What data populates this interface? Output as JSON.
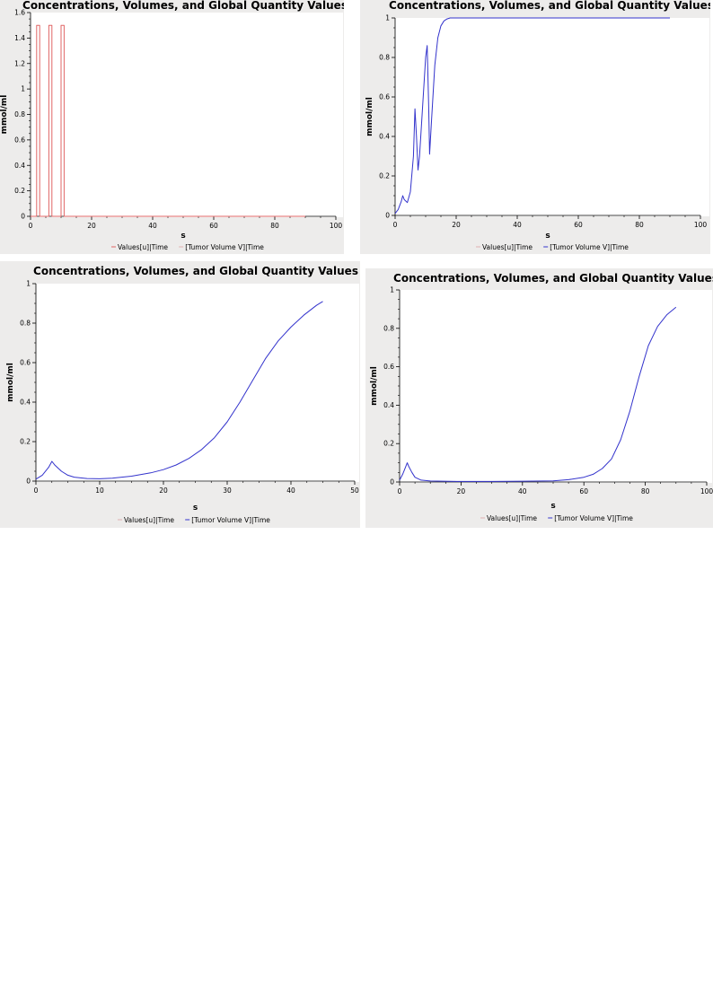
{
  "chart_data": [
    {
      "type": "line",
      "title": "Concentrations, Volumes, and Global Quantity Values",
      "xlabel": "s",
      "ylabel": "mmol/ml",
      "xlim": [
        0,
        100
      ],
      "ylim": [
        0,
        1.6
      ],
      "x_ticks": [
        "0",
        "20",
        "40",
        "60",
        "80",
        "100"
      ],
      "y_ticks": [
        "0",
        "0.2",
        "0.4",
        "0.6",
        "0.8",
        "1",
        "1.2",
        "1.4",
        "1.6"
      ],
      "legend": [
        "Values[u]|Time",
        "[Tumor Volume V]|Time"
      ],
      "series": [
        {
          "name": "Values[u]|Time",
          "color": "#e06666",
          "visible": true,
          "points": [
            [
              0,
              0
            ],
            [
              2,
              0
            ],
            [
              2,
              1.5
            ],
            [
              3,
              1.5
            ],
            [
              3,
              0
            ],
            [
              6,
              0
            ],
            [
              6,
              1.5
            ],
            [
              7,
              1.5
            ],
            [
              7,
              0
            ],
            [
              10,
              0
            ],
            [
              10,
              1.5
            ],
            [
              11,
              1.5
            ],
            [
              11,
              0
            ],
            [
              90,
              0
            ]
          ]
        },
        {
          "name": "[Tumor Volume V]|Time",
          "color": "#3333cc",
          "visible": false,
          "points": []
        }
      ]
    },
    {
      "type": "line",
      "title": "Concentrations, Volumes, and Global Quantity Values",
      "xlabel": "s",
      "ylabel": "mmol/ml",
      "xlim": [
        0,
        100
      ],
      "ylim": [
        0,
        1
      ],
      "x_ticks": [
        "0",
        "20",
        "40",
        "60",
        "80",
        "100"
      ],
      "y_ticks": [
        "0",
        "0.2",
        "0.4",
        "0.6",
        "0.8",
        "1"
      ],
      "legend": [
        "Values[u]|Time",
        "[Tumor Volume V]|Time"
      ],
      "series": [
        {
          "name": "Values[u]|Time",
          "color": "#e06666",
          "visible": false,
          "points": []
        },
        {
          "name": "[Tumor Volume V]|Time",
          "color": "#3333cc",
          "visible": true,
          "points": [
            [
              0,
              0.01
            ],
            [
              1,
              0.03
            ],
            [
              2,
              0.07
            ],
            [
              2.5,
              0.1
            ],
            [
              3,
              0.08
            ],
            [
              4,
              0.065
            ],
            [
              5,
              0.12
            ],
            [
              6,
              0.3
            ],
            [
              6.5,
              0.54
            ],
            [
              7,
              0.4
            ],
            [
              7.5,
              0.23
            ],
            [
              8,
              0.3
            ],
            [
              9,
              0.55
            ],
            [
              10,
              0.8
            ],
            [
              10.5,
              0.86
            ],
            [
              11,
              0.55
            ],
            [
              11.3,
              0.31
            ],
            [
              12,
              0.5
            ],
            [
              13,
              0.76
            ],
            [
              14,
              0.9
            ],
            [
              15,
              0.96
            ],
            [
              16,
              0.985
            ],
            [
              17,
              0.995
            ],
            [
              18,
              1
            ],
            [
              90,
              1
            ]
          ]
        }
      ]
    },
    {
      "type": "line",
      "title": "Concentrations, Volumes, and Global Quantity Values",
      "xlabel": "s",
      "ylabel": "mmol/ml",
      "xlim": [
        0,
        50
      ],
      "ylim": [
        0,
        1
      ],
      "x_ticks": [
        "0",
        "10",
        "20",
        "30",
        "40",
        "50"
      ],
      "y_ticks": [
        "0",
        "0.2",
        "0.4",
        "0.6",
        "0.8",
        "1"
      ],
      "legend": [
        "Values[u]|Time",
        "[Tumor Volume V]|Time"
      ],
      "series": [
        {
          "name": "Values[u]|Time",
          "color": "#e06666",
          "visible": false,
          "points": []
        },
        {
          "name": "[Tumor Volume V]|Time",
          "color": "#3333cc",
          "visible": true,
          "points": [
            [
              0,
              0.01
            ],
            [
              1,
              0.03
            ],
            [
              2,
              0.07
            ],
            [
              2.5,
              0.1
            ],
            [
              3,
              0.08
            ],
            [
              4,
              0.05
            ],
            [
              5,
              0.03
            ],
            [
              6,
              0.02
            ],
            [
              8,
              0.013
            ],
            [
              10,
              0.012
            ],
            [
              12,
              0.015
            ],
            [
              15,
              0.025
            ],
            [
              18,
              0.042
            ],
            [
              20,
              0.058
            ],
            [
              22,
              0.082
            ],
            [
              24,
              0.115
            ],
            [
              26,
              0.16
            ],
            [
              28,
              0.22
            ],
            [
              30,
              0.3
            ],
            [
              32,
              0.4
            ],
            [
              34,
              0.51
            ],
            [
              36,
              0.62
            ],
            [
              38,
              0.71
            ],
            [
              40,
              0.78
            ],
            [
              42,
              0.84
            ],
            [
              44,
              0.89
            ],
            [
              45,
              0.91
            ]
          ]
        }
      ]
    },
    {
      "type": "line",
      "title": "Concentrations, Volumes, and Global Quantity Values",
      "xlabel": "s",
      "ylabel": "mmol/ml",
      "xlim": [
        0,
        100
      ],
      "ylim": [
        0,
        1
      ],
      "x_ticks": [
        "0",
        "20",
        "40",
        "60",
        "80",
        "100"
      ],
      "y_ticks": [
        "0",
        "0.2",
        "0.4",
        "0.6",
        "0.8",
        "1"
      ],
      "legend": [
        "Values[u]|Time",
        "[Tumor Volume V]|Time"
      ],
      "series": [
        {
          "name": "Values[u]|Time",
          "color": "#e06666",
          "visible": false,
          "points": []
        },
        {
          "name": "[Tumor Volume V]|Time",
          "color": "#3333cc",
          "visible": true,
          "points": [
            [
              0,
              0.01
            ],
            [
              1,
              0.04
            ],
            [
              2,
              0.08
            ],
            [
              2.5,
              0.1
            ],
            [
              3,
              0.08
            ],
            [
              4,
              0.05
            ],
            [
              5,
              0.025
            ],
            [
              7,
              0.01
            ],
            [
              10,
              0.005
            ],
            [
              20,
              0.003
            ],
            [
              30,
              0.003
            ],
            [
              40,
              0.004
            ],
            [
              50,
              0.006
            ],
            [
              55,
              0.012
            ],
            [
              60,
              0.025
            ],
            [
              63,
              0.04
            ],
            [
              66,
              0.07
            ],
            [
              69,
              0.12
            ],
            [
              72,
              0.22
            ],
            [
              75,
              0.37
            ],
            [
              78,
              0.55
            ],
            [
              81,
              0.71
            ],
            [
              84,
              0.81
            ],
            [
              87,
              0.87
            ],
            [
              90,
              0.91
            ]
          ]
        }
      ]
    }
  ]
}
